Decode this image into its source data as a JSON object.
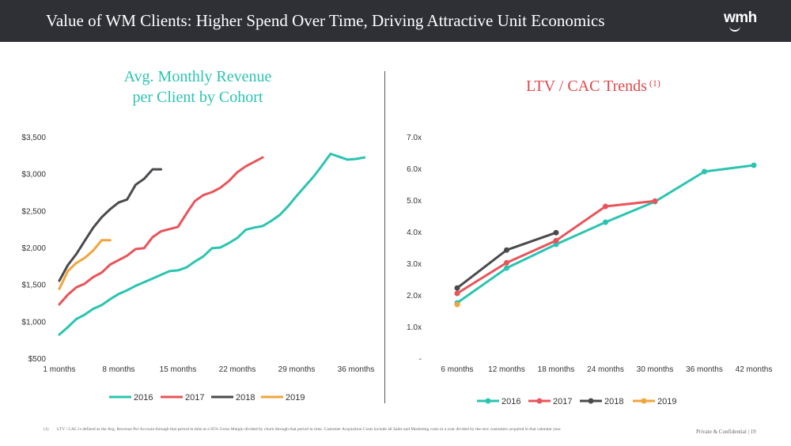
{
  "header": {
    "title": "Value of WM Clients:  Higher Spend Over Time, Driving Attractive Unit Economics",
    "logo": "wmh"
  },
  "footnote": {
    "marker": "(1)",
    "text": "LTV / CAC is defined as the Avg. Revenue Per Account through that period in time at a 95% Gross Margin divided by churn through that period in time. Customer Acquisition Costs include all Sales and Marketing costs in a year divided by the new customers acquired in that calendar year."
  },
  "footer": {
    "text": "Private & Confidential  |  19"
  },
  "colors": {
    "2016": "#2bc4b0",
    "2017": "#e8545a",
    "2018": "#4a4a4e",
    "2019": "#f2a43c"
  },
  "chart_data": [
    {
      "type": "line",
      "title": "Avg. Monthly Revenue per Client by Cohort",
      "title_lines": [
        "Avg. Monthly Revenue",
        "per Client by Cohort"
      ],
      "xlabel": "",
      "ylabel": "",
      "x_tick_labels": [
        "1 months",
        "8 months",
        "15 months",
        "22 months",
        "29 months",
        "36 months"
      ],
      "x_tick_values": [
        1,
        8,
        15,
        22,
        29,
        36
      ],
      "xlim": [
        1,
        36
      ],
      "y_tick_labels": [
        "$500",
        "$1,000",
        "$1,500",
        "$2,000",
        "$2,500",
        "$3,000",
        "$3,500"
      ],
      "y_tick_values": [
        500,
        1000,
        1500,
        2000,
        2500,
        3000,
        3500
      ],
      "ylim": [
        500,
        3500
      ],
      "legend_position": "bottom",
      "series": [
        {
          "name": "2016",
          "markers": false,
          "x": [
            1,
            2,
            3,
            4,
            5,
            6,
            7,
            8,
            9,
            10,
            11,
            12,
            13,
            14,
            15,
            16,
            17,
            18,
            19,
            20,
            21,
            22,
            23,
            24,
            25,
            26,
            27,
            28,
            29,
            30,
            31,
            32,
            33,
            34,
            35,
            36,
            37
          ],
          "values": [
            820,
            920,
            1030,
            1090,
            1170,
            1220,
            1300,
            1370,
            1420,
            1480,
            1530,
            1580,
            1630,
            1680,
            1690,
            1730,
            1810,
            1880,
            1990,
            2000,
            2060,
            2130,
            2240,
            2270,
            2290,
            2360,
            2440,
            2560,
            2700,
            2830,
            2960,
            3110,
            3270,
            3230,
            3190,
            3200,
            3220
          ]
        },
        {
          "name": "2017",
          "markers": false,
          "x": [
            1,
            2,
            3,
            4,
            5,
            6,
            7,
            8,
            9,
            10,
            11,
            12,
            13,
            14,
            15,
            16,
            17,
            18,
            19,
            20,
            21,
            22,
            23,
            24,
            25
          ],
          "values": [
            1230,
            1360,
            1460,
            1510,
            1600,
            1660,
            1770,
            1830,
            1890,
            1980,
            1990,
            2140,
            2220,
            2250,
            2280,
            2460,
            2630,
            2710,
            2750,
            2810,
            2900,
            3020,
            3100,
            3160,
            3220
          ]
        },
        {
          "name": "2018",
          "markers": false,
          "x": [
            1,
            2,
            3,
            4,
            5,
            6,
            7,
            8,
            9,
            10,
            11,
            12,
            13
          ],
          "values": [
            1550,
            1760,
            1910,
            2090,
            2270,
            2410,
            2520,
            2610,
            2650,
            2850,
            2930,
            3060,
            3060
          ]
        },
        {
          "name": "2019",
          "markers": false,
          "x": [
            1,
            2,
            3,
            4,
            5,
            6,
            7
          ],
          "values": [
            1440,
            1680,
            1790,
            1860,
            1960,
            2100,
            2100
          ]
        }
      ]
    },
    {
      "type": "line",
      "title": "LTV / CAC Trends (1)",
      "title_main": "LTV / CAC Trends",
      "title_sup": "(1)",
      "xlabel": "",
      "ylabel": "",
      "categories": [
        "6 months",
        "12 months",
        "18 months",
        "24 months",
        "30 months",
        "36 months",
        "42 months"
      ],
      "y_tick_labels": [
        "-",
        "1.0x",
        "2.0x",
        "3.0x",
        "4.0x",
        "5.0x",
        "6.0x",
        "7.0x"
      ],
      "y_tick_values": [
        0,
        1,
        2,
        3,
        4,
        5,
        6,
        7
      ],
      "ylim": [
        0,
        7
      ],
      "legend_position": "bottom",
      "series": [
        {
          "name": "2016",
          "markers": true,
          "values": [
            1.75,
            2.85,
            3.6,
            4.3,
            4.95,
            5.9,
            6.1
          ]
        },
        {
          "name": "2017",
          "markers": true,
          "values": [
            2.05,
            3.02,
            3.72,
            4.8,
            4.97,
            null,
            null
          ]
        },
        {
          "name": "2018",
          "markers": true,
          "values": [
            2.22,
            3.42,
            3.97,
            null,
            null,
            null,
            null
          ]
        },
        {
          "name": "2019",
          "markers": true,
          "values": [
            1.7,
            null,
            null,
            null,
            null,
            null,
            null
          ]
        }
      ]
    }
  ]
}
